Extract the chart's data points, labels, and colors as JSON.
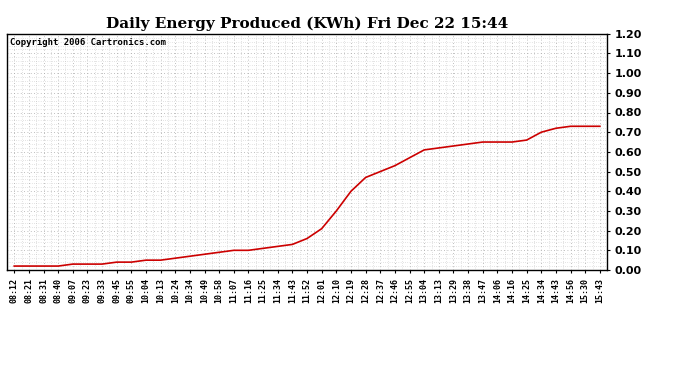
{
  "title": "Daily Energy Produced (KWh) Fri Dec 22 15:44",
  "copyright": "Copyright 2006 Cartronics.com",
  "x_labels": [
    "08:12",
    "08:21",
    "08:31",
    "08:40",
    "09:07",
    "09:23",
    "09:33",
    "09:45",
    "09:55",
    "10:04",
    "10:13",
    "10:24",
    "10:34",
    "10:49",
    "10:58",
    "11:07",
    "11:16",
    "11:25",
    "11:34",
    "11:43",
    "11:52",
    "12:01",
    "12:10",
    "12:19",
    "12:28",
    "12:37",
    "12:46",
    "12:55",
    "13:04",
    "13:13",
    "13:29",
    "13:38",
    "13:47",
    "14:06",
    "14:16",
    "14:25",
    "14:34",
    "14:43",
    "14:56",
    "15:30",
    "15:43"
  ],
  "y_values": [
    0.02,
    0.02,
    0.02,
    0.02,
    0.03,
    0.03,
    0.03,
    0.04,
    0.04,
    0.05,
    0.05,
    0.06,
    0.07,
    0.08,
    0.09,
    0.1,
    0.1,
    0.11,
    0.12,
    0.13,
    0.16,
    0.21,
    0.3,
    0.4,
    0.47,
    0.5,
    0.53,
    0.57,
    0.61,
    0.62,
    0.63,
    0.64,
    0.65,
    0.65,
    0.65,
    0.66,
    0.7,
    0.72,
    0.73,
    0.73,
    0.73
  ],
  "line_color": "#cc0000",
  "bg_color": "#ffffff",
  "plot_bg_color": "#ffffff",
  "grid_color": "#aaaaaa",
  "ylim": [
    0.0,
    1.2
  ],
  "yticks": [
    0.0,
    0.1,
    0.2,
    0.3,
    0.4,
    0.5,
    0.6,
    0.7,
    0.8,
    0.9,
    1.0,
    1.1,
    1.2
  ],
  "title_fontsize": 11,
  "copyright_fontsize": 6.5,
  "tick_fontsize": 6,
  "ytick_fontsize": 8,
  "line_width": 1.2
}
